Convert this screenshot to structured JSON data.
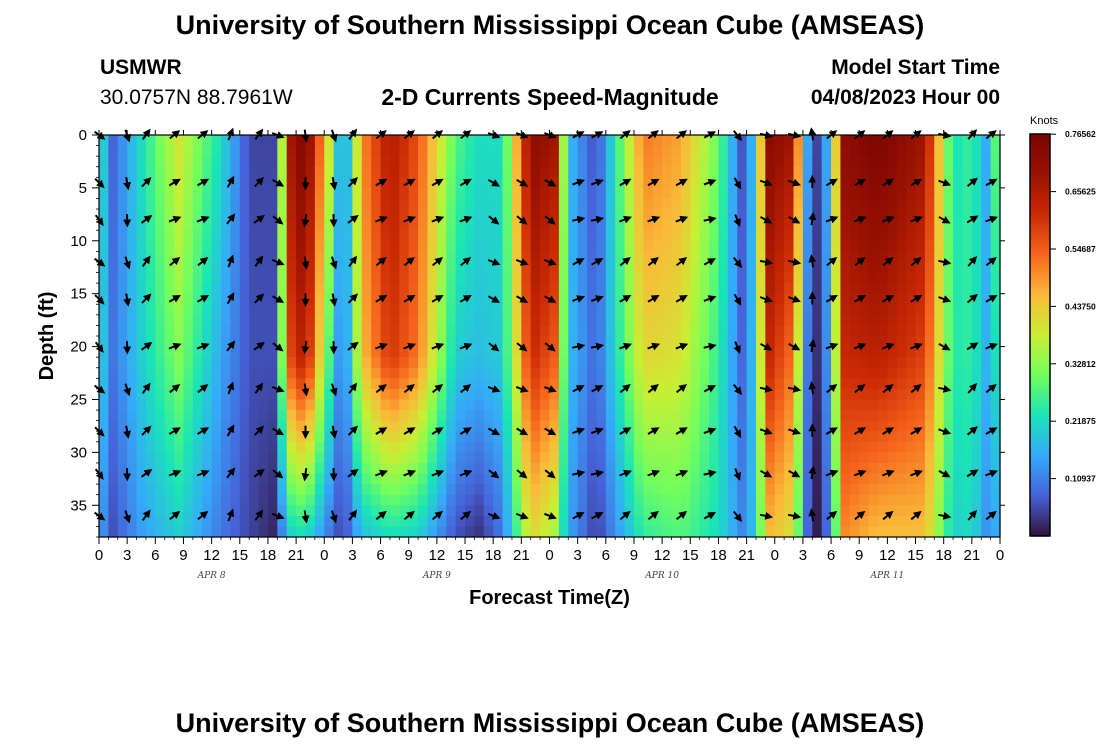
{
  "header": {
    "title": "University of Southern Mississippi Ocean Cube (AMSEAS)",
    "station": "USMWR",
    "coordinates": "30.0757N  88.7961W",
    "subtitle": "2-D Currents Speed-Magnitude",
    "model_start_label": "Model Start Time",
    "model_start_value": "04/08/2023 Hour 00"
  },
  "footer": {
    "title": "University of Southern Mississippi Ocean Cube (AMSEAS)"
  },
  "chart_data": {
    "type": "heatmap",
    "title": "2-D Currents Speed-Magnitude",
    "xlabel": "Forecast Time(Z)",
    "ylabel": "Depth (ft)",
    "colorbar_label": "Knots",
    "colorbar_ticks": [
      "0.76562",
      "0.65625",
      "0.54687",
      "0.43750",
      "0.32812",
      "0.21875",
      "0.10937"
    ],
    "colorbar_values": [
      0.765625,
      0.65625,
      0.546875,
      0.4375,
      0.328125,
      0.21875,
      0.109375
    ],
    "value_range": [
      0.0,
      0.766
    ],
    "x_range_hours": [
      0,
      96
    ],
    "x_tick_labels": [
      "0",
      "3",
      "6",
      "9",
      "12",
      "15",
      "18",
      "21",
      "0",
      "3",
      "6",
      "9",
      "12",
      "15",
      "18",
      "21",
      "0",
      "3",
      "6",
      "9",
      "12",
      "15",
      "18",
      "21",
      "0",
      "3",
      "6",
      "9",
      "12",
      "15",
      "18",
      "21",
      "0"
    ],
    "date_labels": [
      {
        "label": "APR 8",
        "hour": 12
      },
      {
        "label": "APR 9",
        "hour": 36
      },
      {
        "label": "APR 10",
        "hour": 60
      },
      {
        "label": "APR 11",
        "hour": 84
      }
    ],
    "y_range_ft": [
      0,
      38
    ],
    "y_ticks": [
      0,
      5,
      10,
      15,
      20,
      25,
      30,
      35
    ],
    "speed_keyframes": [
      {
        "hour": 0,
        "surface": 0.25,
        "mid": 0.22,
        "bottom": 0.15
      },
      {
        "hour": 1.5,
        "surface": 0.08,
        "mid": 0.1,
        "bottom": 0.06
      },
      {
        "hour": 4.5,
        "surface": 0.22,
        "mid": 0.2,
        "bottom": 0.14
      },
      {
        "hour": 8.5,
        "surface": 0.4,
        "mid": 0.32,
        "bottom": 0.2
      },
      {
        "hour": 13,
        "surface": 0.22,
        "mid": 0.15,
        "bottom": 0.1
      },
      {
        "hour": 16,
        "surface": 0.05,
        "mid": 0.06,
        "bottom": 0.05
      },
      {
        "hour": 18.5,
        "surface": 0.05,
        "mid": 0.06,
        "bottom": 0.02
      },
      {
        "hour": 20.5,
        "surface": 0.68,
        "mid": 0.58,
        "bottom": 0.2
      },
      {
        "hour": 22,
        "surface": 0.76,
        "mid": 0.66,
        "bottom": 0.22
      },
      {
        "hour": 24.5,
        "surface": 0.4,
        "mid": 0.28,
        "bottom": 0.1
      },
      {
        "hour": 26,
        "surface": 0.08,
        "mid": 0.07,
        "bottom": 0.04
      },
      {
        "hour": 28,
        "surface": 0.5,
        "mid": 0.45,
        "bottom": 0.18
      },
      {
        "hour": 31,
        "surface": 0.66,
        "mid": 0.6,
        "bottom": 0.22
      },
      {
        "hour": 34,
        "surface": 0.56,
        "mid": 0.52,
        "bottom": 0.2
      },
      {
        "hour": 38,
        "surface": 0.28,
        "mid": 0.2,
        "bottom": 0.06
      },
      {
        "hour": 40.5,
        "surface": 0.22,
        "mid": 0.18,
        "bottom": 0.03
      },
      {
        "hour": 43,
        "surface": 0.22,
        "mid": 0.2,
        "bottom": 0.1
      },
      {
        "hour": 46,
        "surface": 0.72,
        "mid": 0.62,
        "bottom": 0.42
      },
      {
        "hour": 48.5,
        "surface": 0.68,
        "mid": 0.55,
        "bottom": 0.35
      },
      {
        "hour": 50,
        "surface": 0.18,
        "mid": 0.18,
        "bottom": 0.15
      },
      {
        "hour": 53,
        "surface": 0.05,
        "mid": 0.08,
        "bottom": 0.04
      },
      {
        "hour": 58,
        "surface": 0.52,
        "mid": 0.42,
        "bottom": 0.25
      },
      {
        "hour": 62,
        "surface": 0.48,
        "mid": 0.4,
        "bottom": 0.28
      },
      {
        "hour": 66,
        "surface": 0.3,
        "mid": 0.25,
        "bottom": 0.22
      },
      {
        "hour": 69,
        "surface": 0.02,
        "mid": 0.05,
        "bottom": 0.1
      },
      {
        "hour": 71.5,
        "surface": 0.72,
        "mid": 0.62,
        "bottom": 0.45
      },
      {
        "hour": 74,
        "surface": 0.68,
        "mid": 0.52,
        "bottom": 0.4
      },
      {
        "hour": 75.5,
        "surface": 0.15,
        "mid": 0.1,
        "bottom": 0.08
      },
      {
        "hour": 76.5,
        "surface": 0.05,
        "mid": 0.03,
        "bottom": 0.01
      },
      {
        "hour": 77.5,
        "surface": 0.15,
        "mid": 0.12,
        "bottom": 0.08
      },
      {
        "hour": 79.5,
        "surface": 0.72,
        "mid": 0.62,
        "bottom": 0.5
      },
      {
        "hour": 83,
        "surface": 0.76,
        "mid": 0.64,
        "bottom": 0.45
      },
      {
        "hour": 88,
        "surface": 0.68,
        "mid": 0.58,
        "bottom": 0.45
      },
      {
        "hour": 91,
        "surface": 0.22,
        "mid": 0.24,
        "bottom": 0.2
      },
      {
        "hour": 93,
        "surface": 0.26,
        "mid": 0.25,
        "bottom": 0.22
      },
      {
        "hour": 95,
        "surface": 0.12,
        "mid": 0.14,
        "bottom": 0.1
      },
      {
        "hour": 96,
        "surface": 0.45,
        "mid": 0.3,
        "bottom": 0.2
      }
    ],
    "vector_hours": [
      0,
      3,
      5,
      8,
      11,
      14,
      17,
      19,
      22,
      25,
      27,
      30,
      33,
      36,
      39,
      42,
      45,
      48,
      51,
      53,
      56,
      59,
      62,
      65,
      68,
      71,
      74,
      76,
      78,
      81,
      84,
      87,
      90,
      93,
      95
    ],
    "vector_angles_deg": [
      45,
      80,
      -45,
      -30,
      -30,
      -60,
      -45,
      30,
      90,
      80,
      -45,
      -30,
      -30,
      -30,
      -30,
      30,
      30,
      30,
      -20,
      -20,
      -30,
      -30,
      -30,
      -20,
      60,
      20,
      20,
      -90,
      -30,
      -30,
      -30,
      -30,
      20,
      -40,
      -30
    ],
    "vector_depths_ft": [
      0,
      4.5,
      8,
      12,
      15.5,
      20,
      24,
      28,
      32,
      36
    ]
  }
}
